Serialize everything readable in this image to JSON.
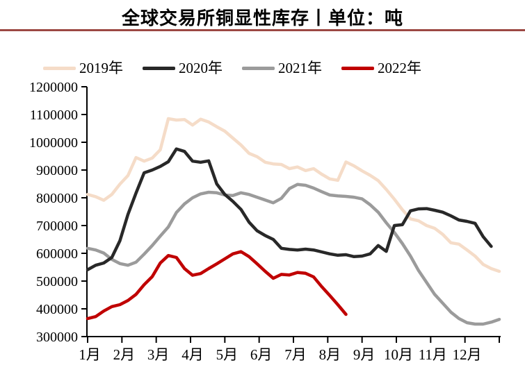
{
  "title": "全球交易所铜显性库存丨单位：吨",
  "legend": [
    {
      "label": "2019年",
      "color": "#f5dcc8"
    },
    {
      "label": "2020年",
      "color": "#282828"
    },
    {
      "label": "2021年",
      "color": "#9b9b9b"
    },
    {
      "label": "2022年",
      "color": "#c00000"
    }
  ],
  "chart_data": {
    "type": "line",
    "title": "全球交易所铜显性库存",
    "unit": "吨",
    "x_unit": "week-of-year",
    "x_tick_labels": [
      "1月",
      "2月",
      "3月",
      "4月",
      "5月",
      "6月",
      "7月",
      "8月",
      "9月",
      "10月",
      "11月",
      "12月"
    ],
    "y_ticks": [
      300000,
      400000,
      500000,
      600000,
      700000,
      800000,
      900000,
      1000000,
      1100000,
      1200000
    ],
    "ylim": [
      300000,
      1200000
    ],
    "grid": false,
    "legend_position": "top",
    "series": [
      {
        "name": "2019年",
        "color": "#f5dcc8",
        "values": [
          812000,
          804000,
          791000,
          812000,
          849000,
          880000,
          945000,
          932000,
          943000,
          973000,
          1085000,
          1080000,
          1082000,
          1062000,
          1083000,
          1073000,
          1056000,
          1040000,
          1015000,
          990000,
          960000,
          948000,
          928000,
          922000,
          920000,
          905000,
          911000,
          898000,
          905000,
          885000,
          868000,
          863000,
          929000,
          915000,
          897000,
          881000,
          862000,
          830000,
          795000,
          757000,
          724000,
          717000,
          700000,
          690000,
          668000,
          638000,
          633000,
          612000,
          590000,
          560000,
          545000,
          535000
        ]
      },
      {
        "name": "2020年",
        "color": "#282828",
        "values": [
          541000,
          557000,
          565000,
          585000,
          645000,
          740000,
          817000,
          890000,
          900000,
          913000,
          930000,
          976000,
          967000,
          932000,
          928000,
          933000,
          850000,
          812000,
          787000,
          758000,
          712000,
          681000,
          664000,
          650000,
          618000,
          614000,
          612000,
          615000,
          612000,
          605000,
          598000,
          593000,
          595000,
          588000,
          590000,
          598000,
          628000,
          607000,
          700000,
          703000,
          753000,
          760000,
          761000,
          755000,
          748000,
          735000,
          720000,
          715000,
          708000,
          660000,
          625000
        ]
      },
      {
        "name": "2021年",
        "color": "#9b9b9b",
        "values": [
          618000,
          612000,
          601000,
          578000,
          563000,
          557000,
          568000,
          597000,
          628000,
          662000,
          695000,
          747000,
          778000,
          800000,
          814000,
          820000,
          818000,
          810000,
          808000,
          818000,
          812000,
          802000,
          792000,
          782000,
          798000,
          833000,
          848000,
          845000,
          835000,
          822000,
          810000,
          807000,
          805000,
          802000,
          796000,
          775000,
          748000,
          710000,
          675000,
          635000,
          590000,
          538000,
          495000,
          452000,
          420000,
          388000,
          365000,
          350000,
          345000,
          345000,
          352000,
          362000
        ]
      },
      {
        "name": "2022年",
        "color": "#c00000",
        "values": [
          365000,
          372000,
          392000,
          408000,
          415000,
          430000,
          452000,
          487000,
          516000,
          565000,
          592000,
          585000,
          545000,
          521000,
          527000,
          545000,
          562000,
          580000,
          598000,
          606000,
          588000,
          562000,
          535000,
          510000,
          524000,
          522000,
          531000,
          528000,
          515000,
          480000,
          448000,
          415000,
          380000
        ]
      }
    ]
  }
}
